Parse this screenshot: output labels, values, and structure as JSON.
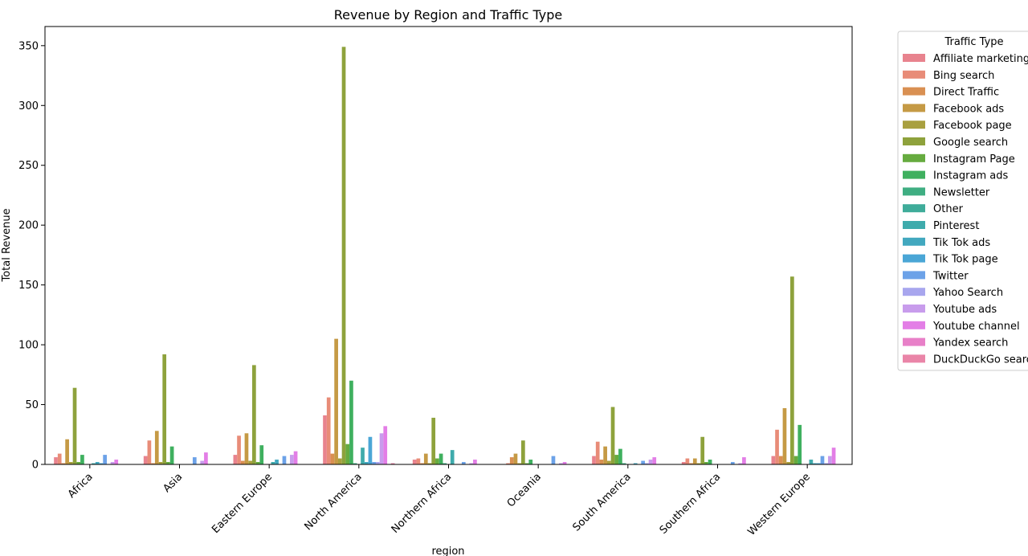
{
  "chart_data": {
    "type": "bar",
    "title": "Revenue by Region and Traffic Type",
    "xlabel": "region",
    "ylabel": "Total Revenue",
    "ylim": [
      0,
      366
    ],
    "yticks": [
      0,
      50,
      100,
      150,
      200,
      250,
      300,
      350
    ],
    "grid": false,
    "legend_title": "Traffic Type",
    "legend_position": "outside-top-right",
    "categories": [
      "Africa",
      "Asia",
      "Eastern Europe",
      "North America",
      "Northern Africa",
      "Oceania",
      "South America",
      "Southern Africa",
      "Western Europe"
    ],
    "series": [
      {
        "name": "Affiliate marketing",
        "color": "#e8838e",
        "values": [
          6,
          7,
          8,
          41,
          4,
          0,
          7,
          2,
          7
        ]
      },
      {
        "name": "Bing search",
        "color": "#e88c78",
        "values": [
          9,
          20,
          24,
          56,
          5,
          1,
          19,
          5,
          29
        ]
      },
      {
        "name": "Direct Traffic",
        "color": "#d99052",
        "values": [
          1,
          1,
          3,
          9,
          1,
          6,
          4,
          1,
          7
        ]
      },
      {
        "name": "Facebook ads",
        "color": "#c59a45",
        "values": [
          21,
          28,
          26,
          105,
          9,
          9,
          15,
          5,
          47
        ]
      },
      {
        "name": "Facebook page",
        "color": "#a9a03f",
        "values": [
          2,
          2,
          3,
          5,
          1,
          1,
          3,
          1,
          2
        ]
      },
      {
        "name": "Google search",
        "color": "#8ea23c",
        "values": [
          64,
          92,
          83,
          349,
          39,
          20,
          48,
          23,
          157
        ]
      },
      {
        "name": "Instagram Page",
        "color": "#66ab3f",
        "values": [
          2,
          2,
          2,
          17,
          5,
          1,
          8,
          2,
          7
        ]
      },
      {
        "name": "Instagram ads",
        "color": "#3fb05f",
        "values": [
          8,
          15,
          16,
          70,
          9,
          4,
          13,
          4,
          33
        ]
      },
      {
        "name": "Newsletter",
        "color": "#3fae82",
        "values": [
          0,
          0,
          0,
          1,
          1,
          0,
          1,
          0,
          0
        ]
      },
      {
        "name": "Other",
        "color": "#3fac9a",
        "values": [
          0,
          0,
          0,
          0,
          0,
          0,
          0,
          0,
          0
        ]
      },
      {
        "name": "Pinterest",
        "color": "#3fabac",
        "values": [
          1,
          0,
          2,
          14,
          12,
          0,
          0,
          0,
          4
        ]
      },
      {
        "name": "Tik Tok ads",
        "color": "#42a8bf",
        "values": [
          2,
          0,
          4,
          2,
          0,
          0,
          1,
          0,
          1
        ]
      },
      {
        "name": "Tik Tok page",
        "color": "#4aa6d6",
        "values": [
          1,
          0,
          0,
          23,
          0,
          0,
          0,
          0,
          1
        ]
      },
      {
        "name": "Twitter",
        "color": "#6ca2e8",
        "values": [
          8,
          6,
          7,
          2,
          2,
          7,
          3,
          2,
          7
        ]
      },
      {
        "name": "Yahoo Search",
        "color": "#a8a6ee",
        "values": [
          0,
          0,
          0,
          2,
          0,
          0,
          1,
          0,
          1
        ]
      },
      {
        "name": "Youtube ads",
        "color": "#c89cec",
        "values": [
          2,
          3,
          8,
          26,
          1,
          1,
          4,
          1,
          7
        ]
      },
      {
        "name": "Youtube channel",
        "color": "#e37ee6",
        "values": [
          4,
          10,
          11,
          32,
          4,
          2,
          6,
          6,
          14
        ]
      },
      {
        "name": "Yandex search",
        "color": "#e880c8",
        "values": [
          0,
          0,
          0,
          0,
          0,
          0,
          0,
          0,
          0
        ]
      },
      {
        "name": "DuckDuckGo search",
        "color": "#ea85a8",
        "values": [
          0,
          0,
          0,
          1,
          0,
          0,
          0,
          0,
          0
        ]
      }
    ]
  }
}
